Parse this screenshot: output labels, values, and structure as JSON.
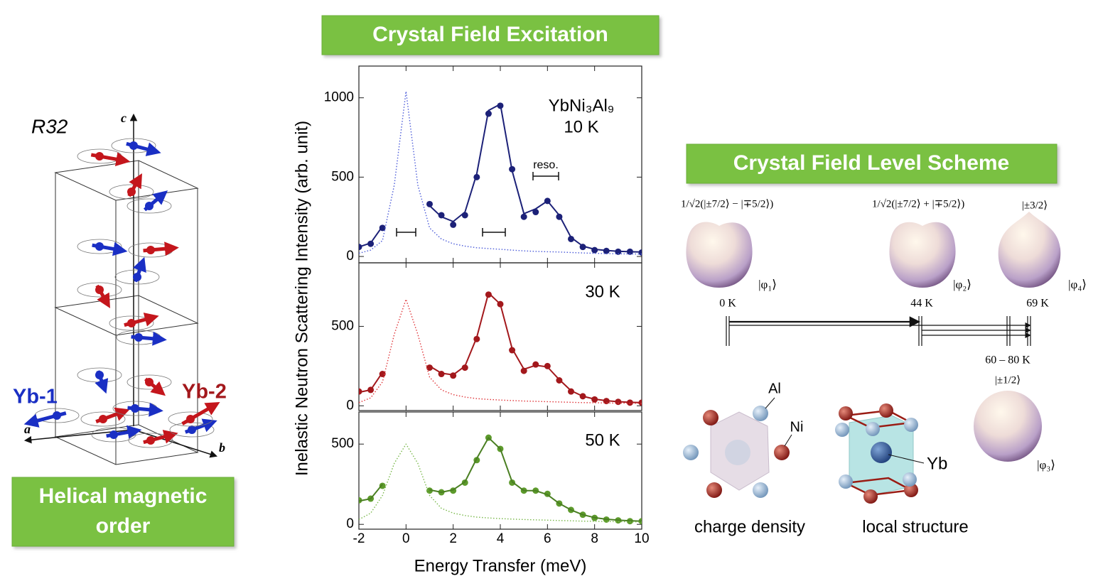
{
  "left_panel": {
    "space_group": "R32",
    "axis_c": "c",
    "axis_a": "a",
    "axis_b": "b",
    "site_1": "Yb-1",
    "site_2": "Yb-2",
    "caption": [
      "Helical magnetic",
      "order"
    ]
  },
  "center_panel": {
    "title": "Crystal Field Excitation",
    "x_label": "Energy Transfer  (meV)",
    "y_label": "Inelastic Neutron Scattering Intensity  (arb. unit)"
  },
  "chart_data": [
    {
      "type": "line",
      "annotations": [
        "YbNi₃Al₉",
        "10 K",
        "reso."
      ],
      "x": [
        -2,
        -1.5,
        -1,
        -0.5,
        0,
        0.5,
        1,
        1.5,
        2,
        2.5,
        3,
        3.5,
        4,
        4.5,
        5,
        5.5,
        6,
        6.5,
        7,
        7.5,
        8,
        8.5,
        9,
        9.5,
        10
      ],
      "xlim": [
        -2,
        10
      ],
      "xticks": [
        -2,
        0,
        2,
        4,
        6,
        8,
        10
      ],
      "ylim": [
        -40,
        1200
      ],
      "yticks": [
        0,
        500,
        1000
      ],
      "series": [
        {
          "style": "markers",
          "color": "#1c2178",
          "values": [
            60,
            80,
            180,
            null,
            null,
            null,
            330,
            260,
            200,
            260,
            500,
            900,
            950,
            550,
            250,
            280,
            350,
            250,
            110,
            60,
            40,
            35,
            30,
            30,
            25
          ]
        },
        {
          "style": "solid",
          "color": "#1c2178",
          "values": [
            60,
            85,
            190,
            null,
            null,
            null,
            320,
            250,
            220,
            280,
            520,
            920,
            960,
            540,
            270,
            300,
            350,
            260,
            120,
            65,
            45,
            38,
            33,
            30,
            28
          ]
        },
        {
          "style": "dotted",
          "color": "#4b5bd9",
          "values": [
            20,
            40,
            100,
            450,
            1040,
            450,
            180,
            110,
            80,
            65,
            55,
            50,
            45,
            40,
            35,
            32,
            30,
            28,
            25,
            22,
            20,
            18,
            17,
            16,
            15
          ]
        }
      ]
    },
    {
      "type": "line",
      "annotations": [
        "30 K"
      ],
      "x": [
        -2,
        -1.5,
        -1,
        -0.5,
        0,
        0.5,
        1,
        1.5,
        2,
        2.5,
        3,
        3.5,
        4,
        4.5,
        5,
        5.5,
        6,
        6.5,
        7,
        7.5,
        8,
        8.5,
        9,
        9.5,
        10
      ],
      "xlim": [
        -2,
        10
      ],
      "xticks": [
        -2,
        0,
        2,
        4,
        6,
        8,
        10
      ],
      "ylim": [
        -30,
        900
      ],
      "yticks": [
        0,
        500
      ],
      "series": [
        {
          "style": "markers",
          "color": "#a3181c",
          "values": [
            90,
            100,
            200,
            null,
            null,
            null,
            240,
            200,
            190,
            240,
            420,
            700,
            640,
            350,
            220,
            260,
            250,
            160,
            90,
            60,
            40,
            30,
            25,
            20,
            20
          ]
        },
        {
          "style": "solid",
          "color": "#a3181c",
          "values": [
            85,
            100,
            210,
            null,
            null,
            null,
            250,
            205,
            195,
            250,
            430,
            710,
            640,
            360,
            230,
            255,
            245,
            165,
            95,
            60,
            42,
            32,
            26,
            22,
            20
          ]
        },
        {
          "style": "dotted",
          "color": "#e0363a",
          "values": [
            20,
            50,
            150,
            450,
            670,
            450,
            180,
            100,
            70,
            55,
            45,
            40,
            36,
            33,
            30,
            28,
            26,
            24,
            22,
            20,
            19,
            18,
            17,
            16,
            15
          ]
        }
      ]
    },
    {
      "type": "line",
      "annotations": [
        "50 K"
      ],
      "x": [
        -2,
        -1.5,
        -1,
        -0.5,
        0,
        0.5,
        1,
        1.5,
        2,
        2.5,
        3,
        3.5,
        4,
        4.5,
        5,
        5.5,
        6,
        6.5,
        7,
        7.5,
        8,
        8.5,
        9,
        9.5,
        10
      ],
      "xlim": [
        -2,
        10
      ],
      "xticks": [
        -2,
        0,
        2,
        4,
        6,
        8,
        10
      ],
      "ylim": [
        -30,
        700
      ],
      "yticks": [
        0,
        500
      ],
      "series": [
        {
          "style": "markers",
          "color": "#5d9a2c",
          "values": [
            150,
            160,
            240,
            null,
            null,
            null,
            210,
            200,
            210,
            260,
            400,
            540,
            470,
            260,
            210,
            210,
            190,
            130,
            90,
            60,
            40,
            30,
            25,
            20,
            20
          ]
        },
        {
          "style": "solid",
          "color": "#4a7f22",
          "values": [
            145,
            160,
            250,
            null,
            null,
            null,
            215,
            200,
            215,
            265,
            410,
            540,
            470,
            265,
            210,
            210,
            185,
            130,
            90,
            60,
            42,
            32,
            26,
            22,
            20
          ]
        },
        {
          "style": "dotted",
          "color": "#79b84a",
          "values": [
            30,
            70,
            180,
            380,
            500,
            380,
            180,
            100,
            70,
            55,
            45,
            40,
            36,
            33,
            30,
            28,
            26,
            24,
            22,
            20,
            19,
            18,
            17,
            16,
            15
          ]
        }
      ]
    }
  ],
  "right_panel": {
    "title": "Crystal Field Level Scheme",
    "states": [
      {
        "wavefunction": "1/√2(|±7/2⟩ − |∓5/2⟩)",
        "label": "|φ₁⟩",
        "energy": "0 K"
      },
      {
        "wavefunction": "1/√2(|±7/2⟩ + |∓5/2⟩)",
        "label": "|φ₂⟩",
        "energy": "44 K"
      },
      {
        "wavefunction": "|±3/2⟩",
        "label": "|φ₄⟩",
        "energy": "69 K"
      },
      {
        "wavefunction": "|±1/2⟩",
        "label": "|φ₃⟩",
        "energy": "60 – 80 K"
      }
    ],
    "atom_al": "Al",
    "atom_ni": "Ni",
    "atom_yb": "Yb",
    "charge_density": "charge density",
    "local_structure": "local structure"
  }
}
